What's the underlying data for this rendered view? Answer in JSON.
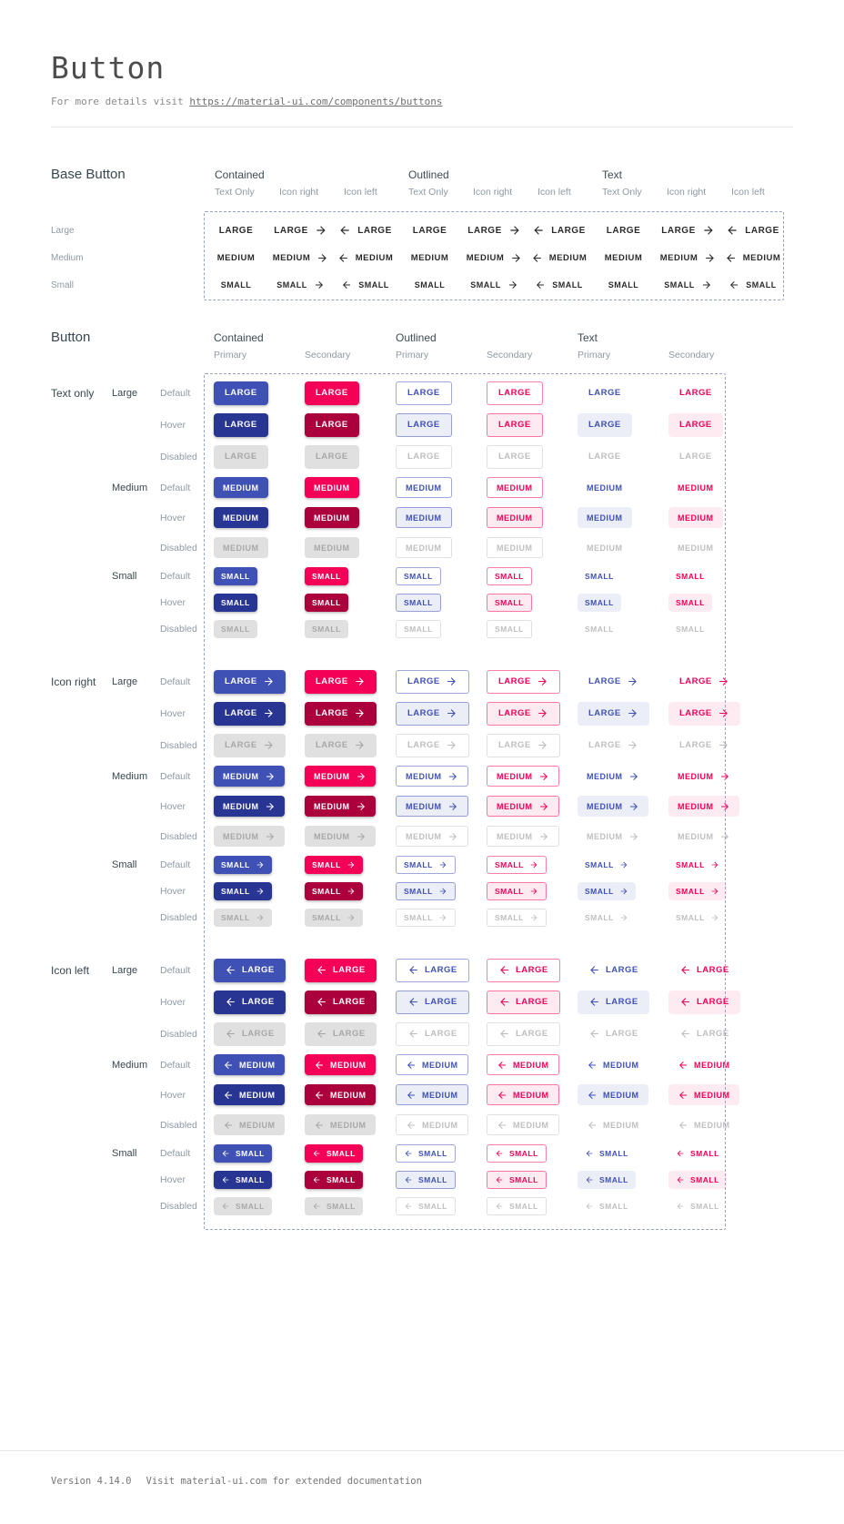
{
  "page": {
    "title": "Button",
    "intro_prefix": "For more details visit ",
    "intro_link": "https://material-ui.com/components/buttons",
    "footer_version": "Version 4.14.0",
    "footer_note": "Visit material-ui.com for extended documentation"
  },
  "base_button": {
    "title": "Base Button",
    "groups": [
      {
        "label": "Contained",
        "variants": [
          "Text Only",
          "Icon right",
          "Icon left"
        ]
      },
      {
        "label": "Outlined",
        "variants": [
          "Text Only",
          "Icon right",
          "Icon left"
        ]
      },
      {
        "label": "Text",
        "variants": [
          "Text Only",
          "Icon right",
          "Icon left"
        ]
      }
    ],
    "rows": [
      {
        "label": "Large",
        "button_text": "LARGE"
      },
      {
        "label": "Medium",
        "button_text": "MEDIUM"
      },
      {
        "label": "Small",
        "button_text": "SMALL"
      }
    ]
  },
  "button": {
    "title": "Button",
    "groups": [
      {
        "label": "Contained",
        "palettes": [
          "Primary",
          "Secondary"
        ]
      },
      {
        "label": "Outlined",
        "palettes": [
          "Primary",
          "Secondary"
        ]
      },
      {
        "label": "Text",
        "palettes": [
          "Primary",
          "Secondary"
        ]
      }
    ],
    "row_groups": [
      {
        "label": "Text only",
        "icon": "none"
      },
      {
        "label": "Icon right",
        "icon": "right"
      },
      {
        "label": "Icon left",
        "icon": "left"
      }
    ],
    "sizes": [
      {
        "label": "Large",
        "button_text": "LARGE"
      },
      {
        "label": "Medium",
        "button_text": "MEDIUM"
      },
      {
        "label": "Small",
        "button_text": "SMALL"
      }
    ],
    "states": [
      "Default",
      "Hover",
      "Disabled"
    ]
  },
  "colors": {
    "primary": "#3f51b5",
    "primary-hover": "#283593",
    "secondary": "#f50057",
    "secondary-hover": "#ab003c",
    "primary-tint": "rgba(63,81,181,0.10)",
    "secondary-tint": "rgba(245,0,87,0.08)",
    "disabled-bg": "#e0e0e0",
    "disabled-text": "rgba(0,0,0,0.26)",
    "outlined-primary-border": "rgba(63,81,181,0.5)",
    "outlined-secondary-border": "rgba(245,0,87,0.5)",
    "disabled-border": "rgba(0,0,0,0.12)"
  }
}
